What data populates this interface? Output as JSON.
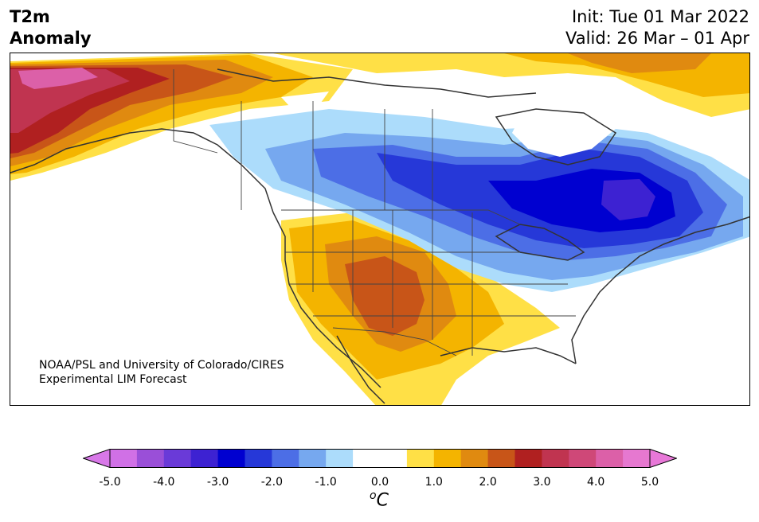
{
  "header": {
    "variable": "T2m",
    "quantity": "Anomaly",
    "init_text": "Init: Tue 01 Mar 2022",
    "valid_text": "Valid: 26 Mar – 01 Apr"
  },
  "credit": {
    "line1": "NOAA/PSL and University of Colorado/CIRES",
    "line2": "Experimental LIM Forecast"
  },
  "colorbar": {
    "unit_base": "C",
    "unit_prefix": "o",
    "tick_labels": [
      "-5.0",
      "-4.0",
      "-3.0",
      "-2.0",
      "-1.0",
      "0.0",
      "1.0",
      "2.0",
      "3.0",
      "4.0",
      "5.0"
    ],
    "boundaries": [
      -5.0,
      -4.5,
      -4.0,
      -3.5,
      -3.0,
      -2.5,
      -2.0,
      -1.5,
      -1.0,
      -0.5,
      0.5,
      1.0,
      1.5,
      2.0,
      2.5,
      3.0,
      3.5,
      4.0,
      4.5,
      5.0
    ],
    "colors": [
      "#d070e6",
      "#9a4fd8",
      "#6a3ad8",
      "#3d22d2",
      "#0000d0",
      "#2638d8",
      "#4c6ee6",
      "#76a8ef",
      "#acdcfb",
      "#ffffff",
      "#ffe046",
      "#f4b400",
      "#e08a10",
      "#c85518",
      "#b02020",
      "#c03450",
      "#cf4878",
      "#dc60a8",
      "#e678d0"
    ],
    "under_color": "#d878e8",
    "over_color": "#e878d8"
  },
  "map": {
    "region": "North America",
    "anomaly_summary": "Warm anomalies over Alaska and the Southwest US; cold anomalies over central Canada and the Great Lakes",
    "colors": {
      "ocean": "#ffffff",
      "coast": "#333333",
      "border": "#444444"
    }
  }
}
